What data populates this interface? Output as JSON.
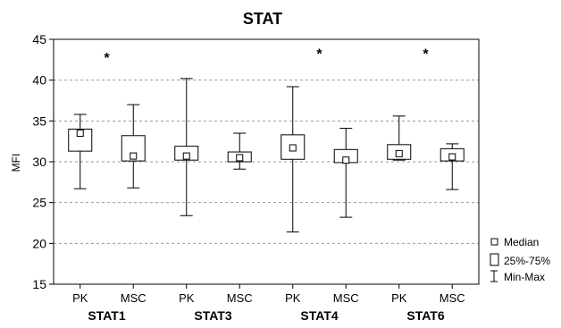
{
  "chart_data": {
    "type": "boxplot",
    "title": "STAT",
    "ylabel": "MFI",
    "ylim": [
      15,
      45
    ],
    "yticks": [
      15,
      20,
      25,
      30,
      35,
      40,
      45
    ],
    "grid": true,
    "groups": [
      "STAT1",
      "STAT3",
      "STAT4",
      "STAT6"
    ],
    "boxes": [
      {
        "label": "PK",
        "min": 26.7,
        "q1": 31.3,
        "median": 33.5,
        "q3": 34.0,
        "max": 35.8
      },
      {
        "label": "MSC",
        "min": 26.8,
        "q1": 30.1,
        "median": 30.7,
        "q3": 33.2,
        "max": 37.0
      },
      {
        "label": "PK",
        "min": 23.4,
        "q1": 30.2,
        "median": 30.7,
        "q3": 31.9,
        "max": 40.2
      },
      {
        "label": "MSC",
        "min": 29.1,
        "q1": 30.0,
        "median": 30.5,
        "q3": 31.2,
        "max": 33.5
      },
      {
        "label": "PK",
        "min": 21.4,
        "q1": 30.3,
        "median": 31.7,
        "q3": 33.3,
        "max": 39.2
      },
      {
        "label": "MSC",
        "min": 23.2,
        "q1": 29.9,
        "median": 30.2,
        "q3": 31.5,
        "max": 34.1
      },
      {
        "label": "PK",
        "min": 30.2,
        "q1": 30.3,
        "median": 31.0,
        "q3": 32.1,
        "max": 35.6
      },
      {
        "label": "MSC",
        "min": 26.6,
        "q1": 30.1,
        "median": 30.6,
        "q3": 31.6,
        "max": 32.2
      }
    ],
    "significance": [
      {
        "symbol": "*",
        "group": "STAT1",
        "y": 42.8
      },
      {
        "symbol": "*",
        "group": "STAT4",
        "y": 43.3
      },
      {
        "symbol": "*",
        "group": "STAT6",
        "y": 43.3
      }
    ],
    "legend": {
      "placement": "bottom-right",
      "entries": [
        "Median",
        "25%-75%",
        "Min-Max"
      ]
    }
  }
}
